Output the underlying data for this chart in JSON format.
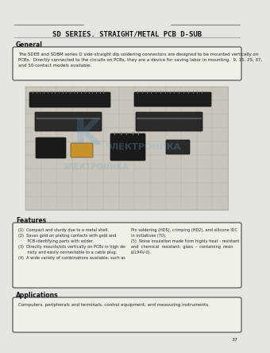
{
  "bg_color": "#e8e5e0",
  "page_bg": "#e8e5e0",
  "title": "SD SERIES. STRAIGHT/METAL PCB D-SUB",
  "title_fontsize": 6.5,
  "page_number": "37",
  "general_text": "The SDEB and SDBM series D side-straight dip soldering connectors are designed to be mounted vertically on\nPCBs.  Directly connected to the circuits on PCBs, they are a device for saving labor in mounting.  9, 15, 25, 37,\nand 50-contact models available.",
  "features_text_left": "(1)  Compact and sturdy due to a metal shell.\n(2)  Saves gold on plating contacts with gold and\n       PCB-identifying parts with solder.\n(3)  Directly mounts/sits vertically on PCBs in high de-\n       nsity and easily connectable to a cable plug.\n(4)  A wide variety of combinations available, such as",
  "features_text_right": "Pin soldering (HDS), crimping (HD2), and silicone IDC\nin initiatives (70).\n(5)  Noise insulation made from highly heat - resistant\nand  chemical  resistant:  glass  -  containing  resin\n(UL94V-0).",
  "applications_text": "Computers, peripherals and terminals, control equipment, and measuring instruments.",
  "text_fontsize": 4.0,
  "section_fontsize": 5.5,
  "watermark_text": "ЭЛЕКТРОНИКА",
  "watermark_color": "#7ab5d8",
  "watermark_alpha": 0.28
}
